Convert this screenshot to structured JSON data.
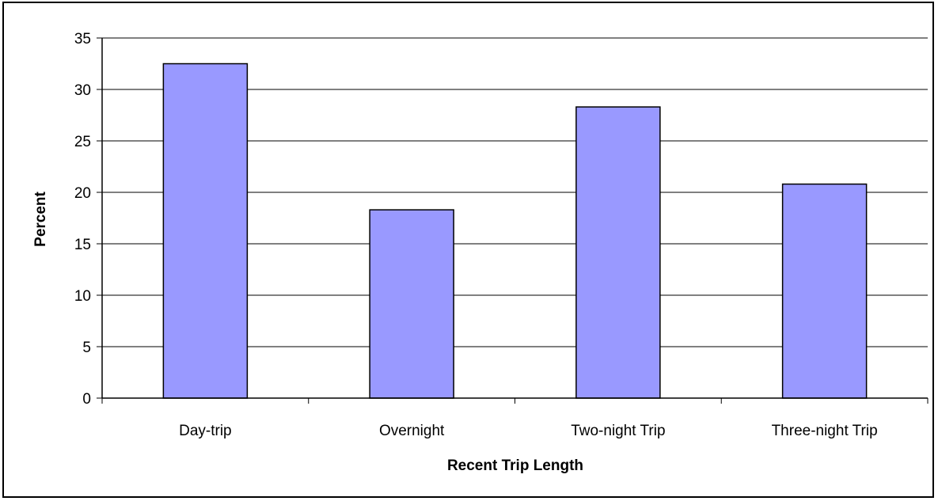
{
  "chart_data": {
    "type": "bar",
    "title": "",
    "xlabel": "Recent Trip Length",
    "ylabel": "Percent",
    "categories": [
      "Day-trip",
      "Overnight",
      "Two-night Trip",
      "Three-night Trip"
    ],
    "values": [
      32.5,
      18.3,
      28.3,
      20.8
    ],
    "ylim": [
      0,
      35
    ],
    "yticks": [
      "0",
      "5",
      "10",
      "15",
      "20",
      "25",
      "30",
      "35"
    ],
    "grid": true,
    "legend": "none",
    "colors": {
      "bar": "#9999ff",
      "bar_edge": "#000000",
      "grid": "#000000"
    }
  }
}
